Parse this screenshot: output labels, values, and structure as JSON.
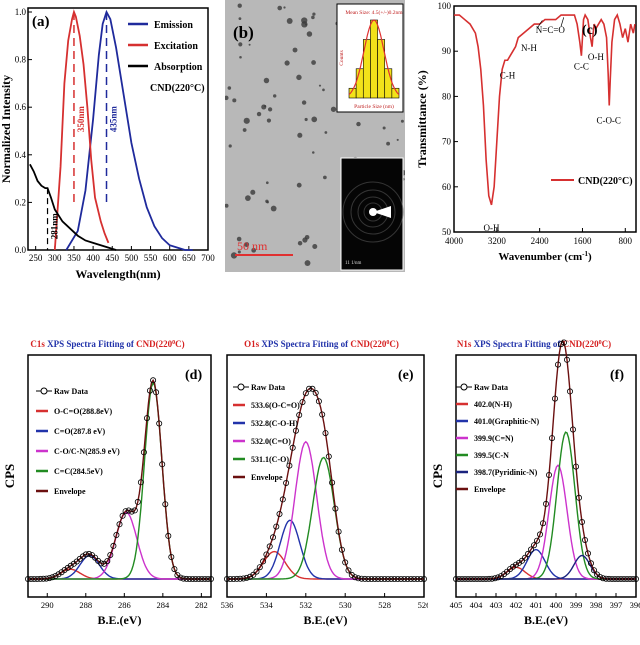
{
  "chart_data": [
    {
      "panel": "(a)",
      "type": "line",
      "xlabel": "Wavelength(nm)",
      "ylabel": "Normalized Intensity",
      "xlim": [
        230,
        700
      ],
      "ylim": [
        0,
        1.0
      ],
      "xticks": [
        "250",
        "300",
        "350",
        "400",
        "450",
        "500",
        "550",
        "600",
        "650",
        "700"
      ],
      "yticks": [
        "0.0",
        "0.2",
        "0.4",
        "0.6",
        "0.8",
        "1.0"
      ],
      "legend_title": "CND(220°C)",
      "annotations": [
        "435nm",
        "350nm",
        "281nm"
      ],
      "series": [
        {
          "name": "Emission",
          "color": "#1f2a9c",
          "x": [
            330,
            360,
            380,
            400,
            415,
            425,
            435,
            445,
            460,
            480,
            500,
            520,
            540,
            560,
            580,
            600,
            620,
            640,
            660
          ],
          "y": [
            0.0,
            0.08,
            0.25,
            0.55,
            0.82,
            0.95,
            1.0,
            0.97,
            0.85,
            0.65,
            0.45,
            0.3,
            0.18,
            0.1,
            0.05,
            0.02,
            0.01,
            0.0,
            0.0
          ]
        },
        {
          "name": "Excitation",
          "color": "#d63030",
          "x": [
            300,
            315,
            325,
            335,
            345,
            350,
            355,
            365,
            375,
            385,
            395,
            405,
            420,
            430,
            440
          ],
          "y": [
            0.0,
            0.35,
            0.7,
            0.88,
            0.97,
            1.0,
            0.98,
            0.9,
            0.78,
            0.6,
            0.38,
            0.22,
            0.12,
            0.07,
            0.03
          ]
        },
        {
          "name": "Absorption",
          "color": "#000000",
          "x": [
            235,
            245,
            255,
            265,
            275,
            281,
            290,
            300,
            320,
            340,
            360,
            380,
            400,
            420,
            440,
            460
          ],
          "y": [
            0.36,
            0.33,
            0.29,
            0.27,
            0.26,
            0.26,
            0.22,
            0.17,
            0.12,
            0.09,
            0.06,
            0.04,
            0.03,
            0.02,
            0.01,
            0.0
          ]
        }
      ]
    },
    {
      "panel": "(b)",
      "type": "bar",
      "title": "Mean Size: 4.5(+/-)0.2nm",
      "xlabel": "Particle Size (nm)",
      "ylabel": "Counts",
      "scale_label": "50 nm",
      "inset_scale_label": "11 1/nm",
      "values": [
        1,
        3,
        6,
        8,
        6,
        3,
        1
      ]
    },
    {
      "panel": "(c)",
      "type": "line",
      "xlabel": "Wavenumber (cm",
      "xlabel_sup": "-1",
      "xlabel_end": ")",
      "ylabel": "Transmittance (%)",
      "xlim": [
        4000,
        600
      ],
      "ylim": [
        50,
        100
      ],
      "xticks": [
        "4000",
        "3200",
        "2400",
        "1600",
        "800"
      ],
      "yticks": [
        "50",
        "60",
        "70",
        "80",
        "90",
        "100"
      ],
      "legend": "CND(220°C)",
      "annotations": [
        "O-H",
        "C-H",
        "N-H",
        "N=C=O",
        "C-C",
        "O-H",
        "C-O-C"
      ],
      "series": [
        {
          "name": "CND(220°C)",
          "color": "#d63030",
          "x": [
            4000,
            3900,
            3800,
            3700,
            3600,
            3550,
            3500,
            3450,
            3400,
            3350,
            3300,
            3250,
            3200,
            3150,
            3100,
            3050,
            3000,
            2950,
            2900,
            2850,
            2800,
            2700,
            2600,
            2500,
            2400,
            2300,
            2200,
            2100,
            2000,
            1900,
            1800,
            1750,
            1700,
            1650,
            1620,
            1600,
            1580,
            1550,
            1500,
            1450,
            1420,
            1400,
            1380,
            1350,
            1300,
            1250,
            1200,
            1150,
            1120,
            1100,
            1080,
            1050,
            1000,
            950,
            900,
            850,
            800,
            750,
            700,
            650,
            620
          ],
          "y": [
            98,
            98,
            97,
            96,
            94,
            91,
            86,
            78,
            66,
            58,
            56,
            60,
            70,
            80,
            86,
            88,
            88,
            89,
            90,
            91,
            93,
            94,
            95,
            96,
            96,
            97,
            97,
            97,
            98,
            98,
            98,
            98,
            96,
            92,
            89,
            93,
            97,
            98,
            97,
            93,
            91,
            94,
            96,
            95,
            96,
            97,
            96,
            93,
            85,
            78,
            84,
            92,
            97,
            98,
            96,
            93,
            95,
            92,
            96,
            94,
            96
          ]
        }
      ]
    },
    {
      "panel": "(d)",
      "type": "line",
      "title_parts": [
        "C1s",
        " XPS Spectra Fitting of ",
        "CND(220",
        "0",
        "C)"
      ],
      "xlabel": "B.E.(eV)",
      "ylabel": "CPS",
      "xlim": [
        291,
        281.5
      ],
      "xticks": [
        "290",
        "288",
        "286",
        "284",
        "282"
      ],
      "legend": [
        "Raw Data",
        "O-C=O(288.8eV)",
        "C=O(287.8 eV)",
        "C-O/C-N(285.9 eV)",
        "C=C(284.5eV)",
        "Envelope"
      ],
      "peaks": [
        {
          "name": "O-C=O(288.8eV)",
          "color": "#d63030",
          "center": 288.8,
          "height": 0.05,
          "width": 0.5
        },
        {
          "name": "C=O(287.8 eV)",
          "color": "#2233aa",
          "center": 287.8,
          "height": 0.12,
          "width": 0.5
        },
        {
          "name": "C-O/C-N(285.9 eV)",
          "color": "#cc33cc",
          "center": 285.9,
          "height": 0.34,
          "width": 0.55
        },
        {
          "name": "C=C(284.5eV)",
          "color": "#228b22",
          "center": 284.5,
          "height": 1.0,
          "width": 0.45
        }
      ]
    },
    {
      "panel": "(e)",
      "type": "line",
      "title_parts": [
        "O1s",
        " XPS Spectra Fitting of ",
        "CND(220",
        "0",
        "C)"
      ],
      "xlabel": "B.E.(eV)",
      "ylabel": "",
      "xlim": [
        536,
        526
      ],
      "xticks": [
        "536",
        "534",
        "532",
        "530",
        "528",
        "526"
      ],
      "legend": [
        "Raw Data",
        "533.6(O-C=O)",
        "532.8(C-O-H)",
        "532.0(C=O)",
        "531.1(C-O)",
        "Envelope"
      ],
      "peaks": [
        {
          "name": "533.6(O-C=O)",
          "color": "#d63030",
          "center": 533.6,
          "height": 0.14,
          "width": 0.55
        },
        {
          "name": "532.8(C-O-H)",
          "color": "#2233aa",
          "center": 532.8,
          "height": 0.3,
          "width": 0.5
        },
        {
          "name": "532.0(C=O)",
          "color": "#cc33cc",
          "center": 532.0,
          "height": 0.7,
          "width": 0.55
        },
        {
          "name": "531.1(C-O)",
          "color": "#228b22",
          "center": 531.1,
          "height": 0.62,
          "width": 0.55
        }
      ]
    },
    {
      "panel": "(f)",
      "type": "line",
      "title_parts": [
        "N1s",
        " XPS Spectra Fitting of ",
        "CND(220",
        "0",
        "C)"
      ],
      "xlabel": "B.E.(eV)",
      "ylabel": "CPS",
      "xlim": [
        405,
        396
      ],
      "xticks": [
        "405",
        "404",
        "403",
        "402",
        "401",
        "400",
        "399",
        "398",
        "397",
        "396"
      ],
      "legend": [
        "Raw Data",
        "402.0(N-H)",
        "401.0(Graphitic-N)",
        "399.9(C=N)",
        "399.5(C-N",
        "398.7(Pyridinic-N)",
        "Envelope"
      ],
      "peaks": [
        {
          "name": "402.0(N-H)",
          "color": "#d63030",
          "center": 402.0,
          "height": 0.06,
          "width": 0.45
        },
        {
          "name": "401.0(Graphitic-N)",
          "color": "#2233aa",
          "center": 401.0,
          "height": 0.15,
          "width": 0.45
        },
        {
          "name": "399.9(C=N)",
          "color": "#cc33cc",
          "center": 399.9,
          "height": 0.58,
          "width": 0.45
        },
        {
          "name": "399.5(C-N",
          "color": "#228b22",
          "center": 399.5,
          "height": 0.75,
          "width": 0.45
        },
        {
          "name": "398.7(Pyridinic-N)",
          "color": "#1a237e",
          "center": 398.7,
          "height": 0.12,
          "width": 0.4
        }
      ]
    }
  ]
}
